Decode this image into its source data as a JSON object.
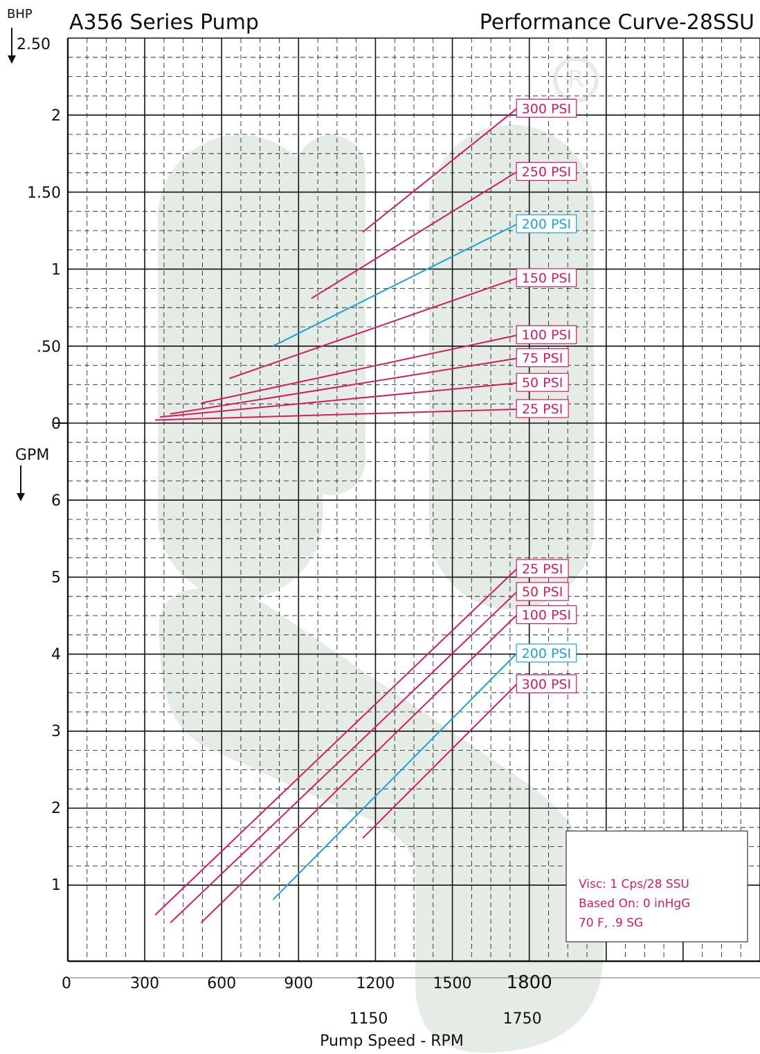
{
  "title_left": "A356 Series  Pump",
  "title_right": "Performance Curve-28SSU",
  "colors": {
    "pink": "#d81b60",
    "blue": "#1aa3d9",
    "watermark": "#e4ece5",
    "grid": "#111111"
  },
  "chart_data": {
    "type": "line",
    "x_axis": {
      "label": "Pump Speed - RPM",
      "range": [
        0,
        2700
      ],
      "ticks": [
        "0",
        "300",
        "600",
        "900",
        "1200",
        "1500",
        "1800"
      ],
      "tick_values": [
        0,
        300,
        600,
        900,
        1200,
        1500,
        1800
      ],
      "secondary_ticks": [
        "1150",
        "1750"
      ],
      "secondary_values": [
        1200,
        1800
      ]
    },
    "bhp_axis": {
      "label": "BHP",
      "range": [
        0,
        2.5
      ],
      "ticks": [
        "2.50",
        "2",
        "1.50",
        "1",
        ".50",
        "0"
      ],
      "tick_values": [
        2.5,
        2,
        1.5,
        1,
        0.5,
        0
      ]
    },
    "gpm_axis": {
      "label": "GPM",
      "range": [
        0,
        7
      ],
      "ticks": [
        "6",
        "5",
        "4",
        "3",
        "2",
        "1"
      ],
      "tick_values": [
        6,
        5,
        4,
        3,
        2,
        1
      ]
    },
    "bhp_series": [
      {
        "name": "300 PSI",
        "color": "pink",
        "x": [
          1150,
          1750
        ],
        "y": [
          1.24,
          2.04
        ]
      },
      {
        "name": "250 PSI",
        "color": "pink",
        "x": [
          950,
          1750
        ],
        "y": [
          0.81,
          1.63
        ]
      },
      {
        "name": "200 PSI",
        "color": "blue",
        "x": [
          800,
          1750
        ],
        "y": [
          0.5,
          1.29
        ]
      },
      {
        "name": "150 PSI",
        "color": "pink",
        "x": [
          630,
          1750
        ],
        "y": [
          0.29,
          0.94
        ]
      },
      {
        "name": "100 PSI",
        "color": "pink",
        "x": [
          520,
          1750
        ],
        "y": [
          0.13,
          0.57
        ]
      },
      {
        "name": "75 PSI",
        "color": "pink",
        "x": [
          400,
          1750
        ],
        "y": [
          0.06,
          0.42
        ]
      },
      {
        "name": "50 PSI",
        "color": "pink",
        "x": [
          360,
          1750
        ],
        "y": [
          0.04,
          0.26
        ]
      },
      {
        "name": "25 PSI",
        "color": "pink",
        "x": [
          340,
          1750
        ],
        "y": [
          0.02,
          0.09
        ]
      }
    ],
    "gpm_series": [
      {
        "name": "25 PSI",
        "color": "pink",
        "x": [
          340,
          1750
        ],
        "y": [
          0.6,
          5.1
        ]
      },
      {
        "name": "50 PSI",
        "color": "pink",
        "x": [
          400,
          1750
        ],
        "y": [
          0.5,
          4.8
        ]
      },
      {
        "name": "100 PSI",
        "color": "pink",
        "x": [
          520,
          1750
        ],
        "y": [
          0.5,
          4.5
        ]
      },
      {
        "name": "200 PSI",
        "color": "blue",
        "x": [
          800,
          1750
        ],
        "y": [
          0.8,
          4.0
        ]
      },
      {
        "name": "300 PSI",
        "color": "pink",
        "x": [
          1150,
          1750
        ],
        "y": [
          1.6,
          3.6
        ]
      }
    ]
  },
  "info_box": {
    "line1": "Visc: 1 Cps/28 SSU",
    "line2": "Based On: 0 inHgG",
    "line3": "70 F, .9 SG"
  }
}
